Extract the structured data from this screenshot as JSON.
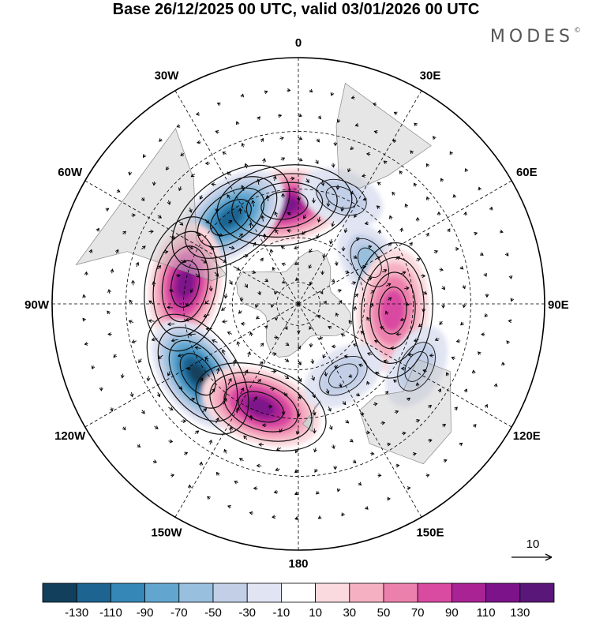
{
  "chart_data": {
    "type": "polar-stereographic-map",
    "title": "Base 26/12/2025 00 UTC, valid 03/01/2026 00 UTC",
    "brand": "MODES",
    "brand_mark": "©",
    "projection": "south-polar-stereographic",
    "longitude_labels": [
      {
        "lon": 0,
        "label": "0"
      },
      {
        "lon": 30,
        "label": "30E"
      },
      {
        "lon": 60,
        "label": "60E"
      },
      {
        "lon": 90,
        "label": "90E"
      },
      {
        "lon": 120,
        "label": "120E"
      },
      {
        "lon": 150,
        "label": "150E"
      },
      {
        "lon": 180,
        "label": "180"
      },
      {
        "lon": -150,
        "label": "150W"
      },
      {
        "lon": -120,
        "label": "120W"
      },
      {
        "lon": -90,
        "label": "90W"
      },
      {
        "lon": -60,
        "label": "60W"
      },
      {
        "lon": -30,
        "label": "30W"
      }
    ],
    "latitude_circles": [
      -80,
      -60,
      -40,
      -20
    ],
    "anomaly_centers": [
      {
        "lon": -8,
        "lat": -46,
        "value": 120
      },
      {
        "lon": -38,
        "lat": -42,
        "value": -130
      },
      {
        "lon": -80,
        "lat": -40,
        "value": 130
      },
      {
        "lon": -125,
        "lat": -37,
        "value": -140
      },
      {
        "lon": -160,
        "lat": -42,
        "value": 125
      },
      {
        "lon": 22,
        "lat": -40,
        "value": -40
      },
      {
        "lon": 60,
        "lat": -53,
        "value": -60
      },
      {
        "lon": 94,
        "lat": -48,
        "value": 90
      },
      {
        "lon": 148,
        "lat": -52,
        "value": -55
      },
      {
        "lon": 118,
        "lat": -33,
        "value": -40
      }
    ],
    "colorbar": {
      "levels": [
        "-130",
        "-110",
        "-90",
        "-70",
        "-50",
        "-30",
        "-10",
        "10",
        "30",
        "50",
        "70",
        "90",
        "110",
        "130"
      ],
      "colors": [
        "#12405c",
        "#1d6491",
        "#3587b8",
        "#62a6cf",
        "#98bfdd",
        "#c2cfe7",
        "#e1e4f2",
        "#ffffff",
        "#fadade",
        "#f5b0c2",
        "#ec80ad",
        "#d94aa1",
        "#aa2394",
        "#7c138a",
        "#5a177a"
      ]
    },
    "vector_reference": {
      "value": "10"
    }
  }
}
